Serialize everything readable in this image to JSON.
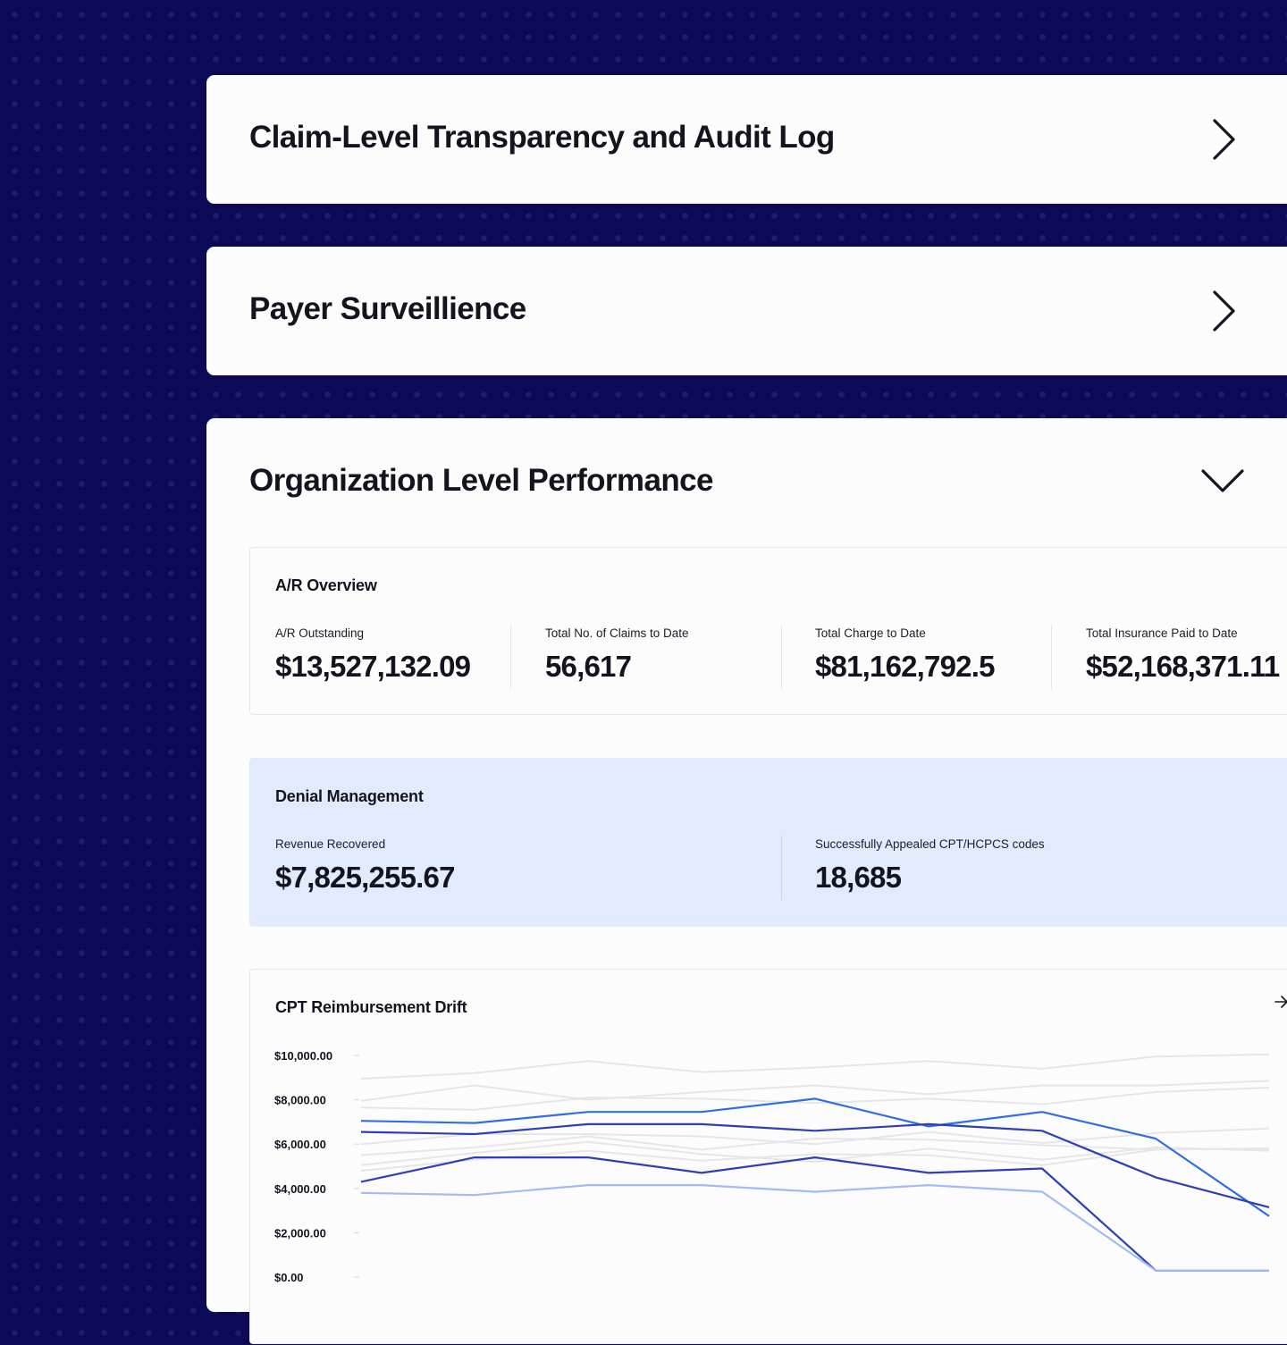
{
  "sections": {
    "claim_log": {
      "title": "Claim-Level Transparency and Audit Log"
    },
    "payer": {
      "title": "Payer Surveillience"
    },
    "org": {
      "title": "Organization Level Performance"
    }
  },
  "ar_overview": {
    "title": "A/R Overview",
    "stats": [
      {
        "label": "A/R Outstanding",
        "value": "$13,527,132.09"
      },
      {
        "label": "Total No. of Claims to Date",
        "value": "56,617"
      },
      {
        "label": "Total Charge to Date",
        "value": "$81,162,792.5"
      },
      {
        "label": "Total Insurance Paid to Date",
        "value": "$52,168,371.11"
      }
    ]
  },
  "denial": {
    "title": "Denial Management",
    "stats": [
      {
        "label": "Revenue Recovered",
        "value": "$7,825,255.67"
      },
      {
        "label": "Successfully Appealed CPT/HCPCS codes",
        "value": "18,685"
      }
    ]
  },
  "drift": {
    "title": "CPT Reimbursement Drift"
  },
  "chart_data": {
    "type": "line",
    "title": "CPT Reimbursement Drift",
    "ylim": [
      0,
      10000
    ],
    "yticks": [
      "$10,000.00",
      "$8,000.00",
      "$6,000.00",
      "$4,000.00",
      "$2,000.00",
      "$0.00"
    ],
    "grid": false,
    "x": [
      1,
      2,
      3,
      4,
      5,
      6,
      7,
      8,
      9
    ],
    "series": [
      {
        "values": [
          8950,
          9200,
          9750,
          9250,
          9450,
          9750,
          9400,
          9950,
          10050
        ],
        "color": "#e6e6ea"
      },
      {
        "values": [
          7950,
          8650,
          8000,
          8350,
          8650,
          8250,
          8650,
          8650,
          8850
        ],
        "color": "#e6e6ea"
      },
      {
        "values": [
          7650,
          7550,
          8100,
          8050,
          7850,
          8050,
          7800,
          8350,
          8550
        ],
        "color": "#e6e6ea"
      },
      {
        "values": [
          6000,
          6450,
          6450,
          6350,
          6000,
          6550,
          6050,
          6500,
          6700
        ],
        "color": "#e6e6ea"
      },
      {
        "values": [
          5500,
          5850,
          6350,
          5750,
          6250,
          6200,
          5950,
          5750,
          5800
        ],
        "color": "#e6e6ea"
      },
      {
        "values": [
          5050,
          5600,
          6100,
          5550,
          5200,
          5800,
          5300,
          5850,
          5700
        ],
        "color": "#e6e6ea"
      },
      {
        "values": [
          4800,
          5300,
          5700,
          5250,
          5550,
          5500,
          5050,
          5750,
          5800
        ],
        "color": "#e6e6ea"
      },
      {
        "values": [
          7050,
          6950,
          7450,
          7450,
          8050,
          6800,
          7450,
          6250,
          2750
        ],
        "color": "#2f6ee8"
      },
      {
        "values": [
          6550,
          6450,
          6900,
          6900,
          6600,
          6900,
          6600,
          4500,
          3150
        ],
        "color": "#2d3fb8"
      },
      {
        "values": [
          4300,
          5400,
          5400,
          4700,
          5400,
          4700,
          4900,
          300,
          300
        ],
        "color": "#2d3fb8"
      },
      {
        "values": [
          3800,
          3700,
          4150,
          4150,
          3850,
          4150,
          3850,
          300,
          300
        ],
        "color": "#9ebcf5"
      }
    ]
  }
}
